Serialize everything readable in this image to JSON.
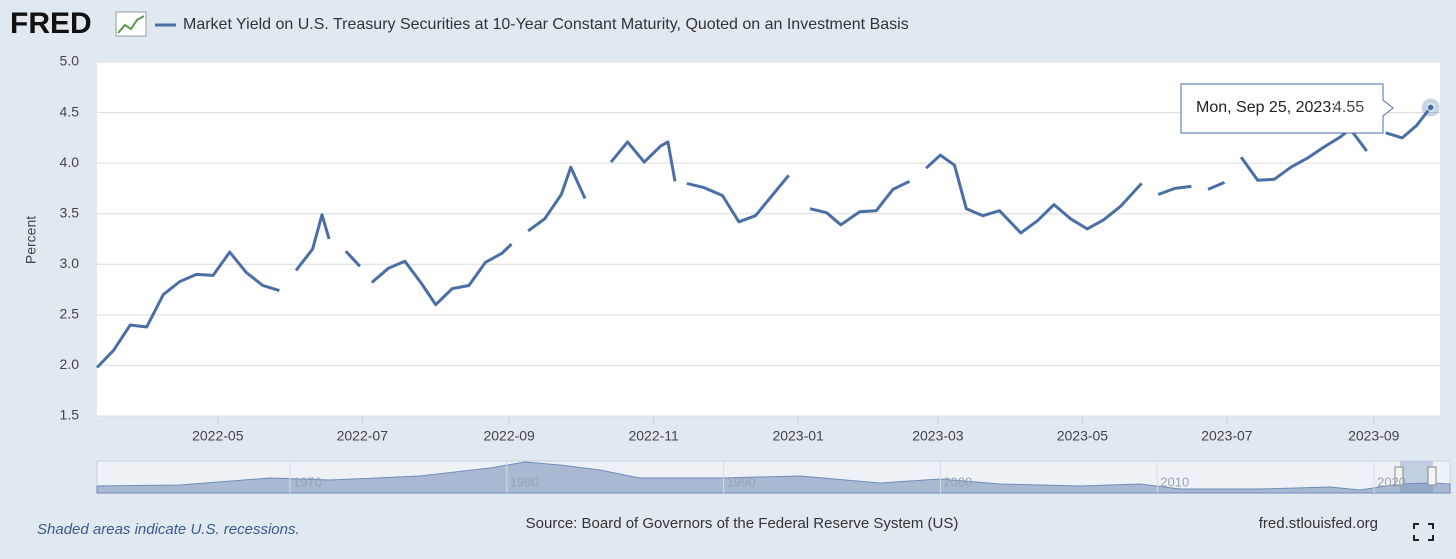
{
  "brand": "FRED",
  "footer": {
    "note": "Shaded areas indicate U.S. recessions.",
    "source": "Source: Board of Governors of the Federal Reserve System (US)",
    "site": "fred.stlouisfed.org"
  },
  "chart_data": {
    "type": "line",
    "ylabel": "Percent",
    "x": [
      "2022-03-11",
      "2022-03-18",
      "2022-03-25",
      "2022-04-01",
      "2022-04-08",
      "2022-04-15",
      "2022-04-22",
      "2022-04-29",
      "2022-05-06",
      "2022-05-13",
      "2022-05-20",
      "2022-05-27",
      "2022-05-31",
      "2022-06-03",
      "2022-06-10",
      "2022-06-14",
      "2022-06-17",
      "2022-06-20",
      "2022-06-24",
      "2022-06-30",
      "2022-07-04",
      "2022-07-05",
      "2022-07-12",
      "2022-07-19",
      "2022-07-26",
      "2022-08-01",
      "2022-08-08",
      "2022-08-15",
      "2022-08-22",
      "2022-08-29",
      "2022-09-02",
      "2022-09-05",
      "2022-09-09",
      "2022-09-16",
      "2022-09-23",
      "2022-09-27",
      "2022-10-03",
      "2022-10-10",
      "2022-10-14",
      "2022-10-21",
      "2022-10-28",
      "2022-11-04",
      "2022-11-07",
      "2022-11-10",
      "2022-11-11",
      "2022-11-15",
      "2022-11-22",
      "2022-11-30",
      "2022-12-07",
      "2022-12-14",
      "2022-12-21",
      "2022-12-28",
      "2023-01-02",
      "2023-01-06",
      "2023-01-13",
      "2023-01-19",
      "2023-01-27",
      "2023-02-03",
      "2023-02-10",
      "2023-02-17",
      "2023-02-20",
      "2023-02-24",
      "2023-03-02",
      "2023-03-08",
      "2023-03-13",
      "2023-03-20",
      "2023-03-27",
      "2023-04-05",
      "2023-04-12",
      "2023-04-19",
      "2023-04-26",
      "2023-05-03",
      "2023-05-10",
      "2023-05-17",
      "2023-05-26",
      "2023-05-29",
      "2023-06-02",
      "2023-06-09",
      "2023-06-16",
      "2023-06-19",
      "2023-06-23",
      "2023-06-30",
      "2023-07-04",
      "2023-07-07",
      "2023-07-14",
      "2023-07-21",
      "2023-07-28",
      "2023-08-04",
      "2023-08-11",
      "2023-08-18",
      "2023-08-22",
      "2023-08-29",
      "2023-09-04",
      "2023-09-06",
      "2023-09-13",
      "2023-09-19",
      "2023-09-25"
    ],
    "series": [
      {
        "name": "Market Yield on U.S. Treasury Securities at 10-Year Constant Maturity, Quoted on an Investment Basis",
        "color": "#4a6fa5",
        "values": [
          1.98,
          2.15,
          2.4,
          2.38,
          2.7,
          2.83,
          2.9,
          2.89,
          3.12,
          2.92,
          2.79,
          2.74,
          null,
          2.94,
          3.15,
          3.49,
          3.25,
          null,
          3.13,
          2.98,
          null,
          2.82,
          2.96,
          3.03,
          2.81,
          2.6,
          2.76,
          2.79,
          3.02,
          3.11,
          3.2,
          null,
          3.33,
          3.45,
          3.69,
          3.96,
          3.65,
          null,
          4.01,
          4.21,
          4.01,
          4.17,
          4.21,
          3.82,
          null,
          3.8,
          3.76,
          3.68,
          3.42,
          3.48,
          3.68,
          3.88,
          null,
          3.55,
          3.51,
          3.39,
          3.52,
          3.53,
          3.74,
          3.82,
          null,
          3.95,
          4.08,
          3.98,
          3.55,
          3.48,
          3.53,
          3.31,
          3.43,
          3.59,
          3.45,
          3.35,
          3.44,
          3.57,
          3.8,
          null,
          3.69,
          3.75,
          3.77,
          null,
          3.74,
          3.81,
          null,
          4.06,
          3.83,
          3.84,
          3.96,
          4.05,
          4.16,
          4.26,
          4.34,
          4.12,
          null,
          4.3,
          4.25,
          4.37,
          4.55
        ]
      }
    ],
    "xlim": [
      "2022-03-11",
      "2023-09-26"
    ],
    "xticks": [
      {
        "value": "2022-05-01",
        "label": "2022-05"
      },
      {
        "value": "2022-07-01",
        "label": "2022-07"
      },
      {
        "value": "2022-09-01",
        "label": "2022-09"
      },
      {
        "value": "2022-11-01",
        "label": "2022-11"
      },
      {
        "value": "2023-01-01",
        "label": "2023-01"
      },
      {
        "value": "2023-03-01",
        "label": "2023-03"
      },
      {
        "value": "2023-05-01",
        "label": "2023-05"
      },
      {
        "value": "2023-07-01",
        "label": "2023-07"
      },
      {
        "value": "2023-09-01",
        "label": "2023-09"
      }
    ],
    "ylim": [
      1.5,
      5
    ],
    "yticks": [
      1.5,
      {
        "value": 2,
        "label": "2.0"
      },
      2.5,
      {
        "value": 3,
        "label": "3.0"
      },
      3.5,
      {
        "value": 4,
        "label": "4.0"
      },
      4.5,
      {
        "value": 5,
        "label": "5.0"
      }
    ],
    "grid": true,
    "tooltip": "Mon, Sep 25, 2023:",
    "navigator_xlim": [
      1961.1,
      2023.5
    ],
    "navigator_xticks": [
      1970,
      1980,
      1990,
      2000,
      2010,
      2020
    ]
  }
}
